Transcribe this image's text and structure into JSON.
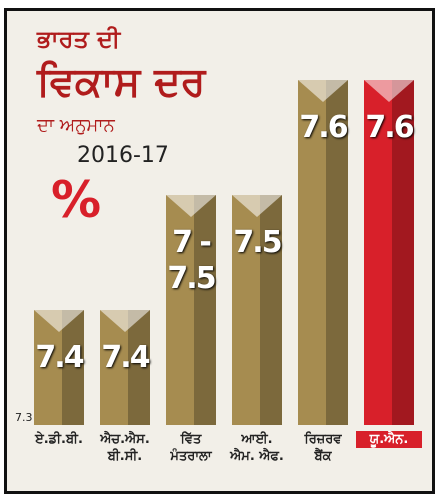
{
  "chart_data": {
    "type": "bar",
    "title_lines": [
      "ਭਾਰਤ ਦੀ",
      "ਵਿਕਾਸ ਦਰ",
      "ਦਾ ਅਨੁਮਾਨ"
    ],
    "subtitle": "2016-17",
    "symbol": "%",
    "categories": [
      "ਏ.ਡੀ.ਬੀ.",
      "ਐਚ.ਐਸ.\nਬੀ.ਸੀ.",
      "ਵਿੱਤ\nਮੰਤਰਾਲਾ",
      "ਆਈ.\nਐਮ. ਐਫ.",
      "ਰਿਜ਼ਰਵ\nਬੈਂਕ",
      "ਯੂ.ਐਨ."
    ],
    "values": [
      7.4,
      7.4,
      7.5,
      7.5,
      7.6,
      7.6
    ],
    "value_labels": [
      "7.4",
      "7.4",
      "7 - 7.5",
      "7.5",
      "7.6",
      "7.6"
    ],
    "colors": [
      "#a68c50",
      "#a68c50",
      "#a68c50",
      "#a68c50",
      "#a68c50",
      "#d8202a"
    ],
    "ylim": [
      7.3,
      7.65
    ],
    "yticks": [
      7.3
    ]
  }
}
